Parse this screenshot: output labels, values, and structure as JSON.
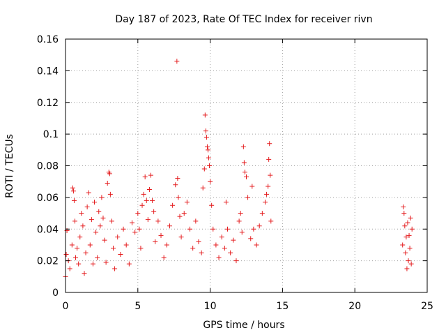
{
  "chart_data": {
    "type": "scatter",
    "title": "Day 187 of 2023, Rate Of TEC Index for receiver rivn",
    "xlabel": "GPS time / hours",
    "ylabel": "ROTI / TECUs",
    "xlim": [
      0,
      25
    ],
    "ylim": [
      0,
      0.16
    ],
    "xticks": [
      0,
      5,
      10,
      15,
      20,
      25
    ],
    "xtick_labels": [
      "0",
      "5",
      "10",
      "15",
      "20",
      "25"
    ],
    "yticks": [
      0,
      0.02,
      0.04,
      0.06,
      0.08,
      0.1,
      0.12,
      0.14,
      0.16
    ],
    "ytick_labels": [
      "0",
      "0.02",
      "0.04",
      "0.06",
      "0.08",
      "0.1",
      "0.12",
      "0.14",
      "0.16"
    ],
    "grid": true,
    "marker": "plus",
    "color": "#e41a1c",
    "series": [
      {
        "name": "ROTI",
        "points": [
          [
            0.0,
            0.01
          ],
          [
            0.05,
            0.024
          ],
          [
            0.1,
            0.039
          ],
          [
            0.2,
            0.02
          ],
          [
            0.3,
            0.015
          ],
          [
            0.45,
            0.03
          ],
          [
            0.5,
            0.066
          ],
          [
            0.55,
            0.064
          ],
          [
            0.6,
            0.058
          ],
          [
            0.65,
            0.045
          ],
          [
            0.7,
            0.022
          ],
          [
            0.8,
            0.028
          ],
          [
            0.9,
            0.018
          ],
          [
            1.0,
            0.035
          ],
          [
            1.1,
            0.05
          ],
          [
            1.2,
            0.042
          ],
          [
            1.3,
            0.012
          ],
          [
            1.4,
            0.025
          ],
          [
            1.5,
            0.054
          ],
          [
            1.6,
            0.063
          ],
          [
            1.7,
            0.03
          ],
          [
            1.8,
            0.046
          ],
          [
            1.9,
            0.018
          ],
          [
            2.0,
            0.057
          ],
          [
            2.1,
            0.038
          ],
          [
            2.2,
            0.022
          ],
          [
            2.3,
            0.051
          ],
          [
            2.4,
            0.042
          ],
          [
            2.5,
            0.06
          ],
          [
            2.6,
            0.047
          ],
          [
            2.7,
            0.033
          ],
          [
            2.8,
            0.019
          ],
          [
            2.9,
            0.069
          ],
          [
            3.0,
            0.076
          ],
          [
            3.05,
            0.075
          ],
          [
            3.1,
            0.062
          ],
          [
            3.2,
            0.045
          ],
          [
            3.3,
            0.028
          ],
          [
            3.4,
            0.015
          ],
          [
            3.6,
            0.035
          ],
          [
            3.8,
            0.024
          ],
          [
            4.0,
            0.04
          ],
          [
            4.2,
            0.03
          ],
          [
            4.4,
            0.018
          ],
          [
            4.6,
            0.044
          ],
          [
            4.8,
            0.038
          ],
          [
            5.0,
            0.05
          ],
          [
            5.1,
            0.04
          ],
          [
            5.2,
            0.028
          ],
          [
            5.3,
            0.055
          ],
          [
            5.4,
            0.062
          ],
          [
            5.5,
            0.073
          ],
          [
            5.6,
            0.058
          ],
          [
            5.7,
            0.046
          ],
          [
            5.8,
            0.065
          ],
          [
            5.9,
            0.074
          ],
          [
            6.0,
            0.058
          ],
          [
            6.1,
            0.051
          ],
          [
            6.2,
            0.032
          ],
          [
            6.4,
            0.045
          ],
          [
            6.6,
            0.036
          ],
          [
            6.8,
            0.022
          ],
          [
            7.0,
            0.03
          ],
          [
            7.2,
            0.042
          ],
          [
            7.4,
            0.055
          ],
          [
            7.6,
            0.068
          ],
          [
            7.7,
            0.146
          ],
          [
            7.75,
            0.072
          ],
          [
            7.8,
            0.06
          ],
          [
            7.9,
            0.048
          ],
          [
            8.0,
            0.035
          ],
          [
            8.2,
            0.05
          ],
          [
            8.4,
            0.057
          ],
          [
            8.6,
            0.04
          ],
          [
            8.8,
            0.028
          ],
          [
            9.0,
            0.045
          ],
          [
            9.2,
            0.032
          ],
          [
            9.4,
            0.025
          ],
          [
            9.5,
            0.066
          ],
          [
            9.6,
            0.078
          ],
          [
            9.65,
            0.112
          ],
          [
            9.7,
            0.102
          ],
          [
            9.75,
            0.098
          ],
          [
            9.8,
            0.092
          ],
          [
            9.85,
            0.09
          ],
          [
            9.9,
            0.085
          ],
          [
            9.95,
            0.08
          ],
          [
            10.0,
            0.07
          ],
          [
            10.1,
            0.055
          ],
          [
            10.2,
            0.04
          ],
          [
            10.4,
            0.03
          ],
          [
            10.6,
            0.022
          ],
          [
            10.8,
            0.035
          ],
          [
            11.0,
            0.028
          ],
          [
            11.1,
            0.057
          ],
          [
            11.2,
            0.04
          ],
          [
            11.4,
            0.025
          ],
          [
            11.6,
            0.033
          ],
          [
            11.8,
            0.02
          ],
          [
            12.0,
            0.045
          ],
          [
            12.1,
            0.05
          ],
          [
            12.2,
            0.038
          ],
          [
            12.3,
            0.092
          ],
          [
            12.35,
            0.082
          ],
          [
            12.4,
            0.076
          ],
          [
            12.5,
            0.073
          ],
          [
            12.6,
            0.06
          ],
          [
            12.8,
            0.034
          ],
          [
            12.9,
            0.067
          ],
          [
            13.0,
            0.04
          ],
          [
            13.2,
            0.03
          ],
          [
            13.4,
            0.042
          ],
          [
            13.6,
            0.05
          ],
          [
            13.8,
            0.057
          ],
          [
            13.9,
            0.062
          ],
          [
            14.0,
            0.067
          ],
          [
            14.05,
            0.084
          ],
          [
            14.1,
            0.094
          ],
          [
            14.15,
            0.074
          ],
          [
            14.2,
            0.045
          ],
          [
            23.3,
            0.03
          ],
          [
            23.35,
            0.054
          ],
          [
            23.4,
            0.05
          ],
          [
            23.45,
            0.042
          ],
          [
            23.5,
            0.025
          ],
          [
            23.55,
            0.035
          ],
          [
            23.6,
            0.015
          ],
          [
            23.65,
            0.044
          ],
          [
            23.7,
            0.02
          ],
          [
            23.75,
            0.036
          ],
          [
            23.8,
            0.028
          ],
          [
            23.85,
            0.047
          ],
          [
            23.9,
            0.018
          ],
          [
            23.95,
            0.04
          ]
        ]
      }
    ]
  }
}
